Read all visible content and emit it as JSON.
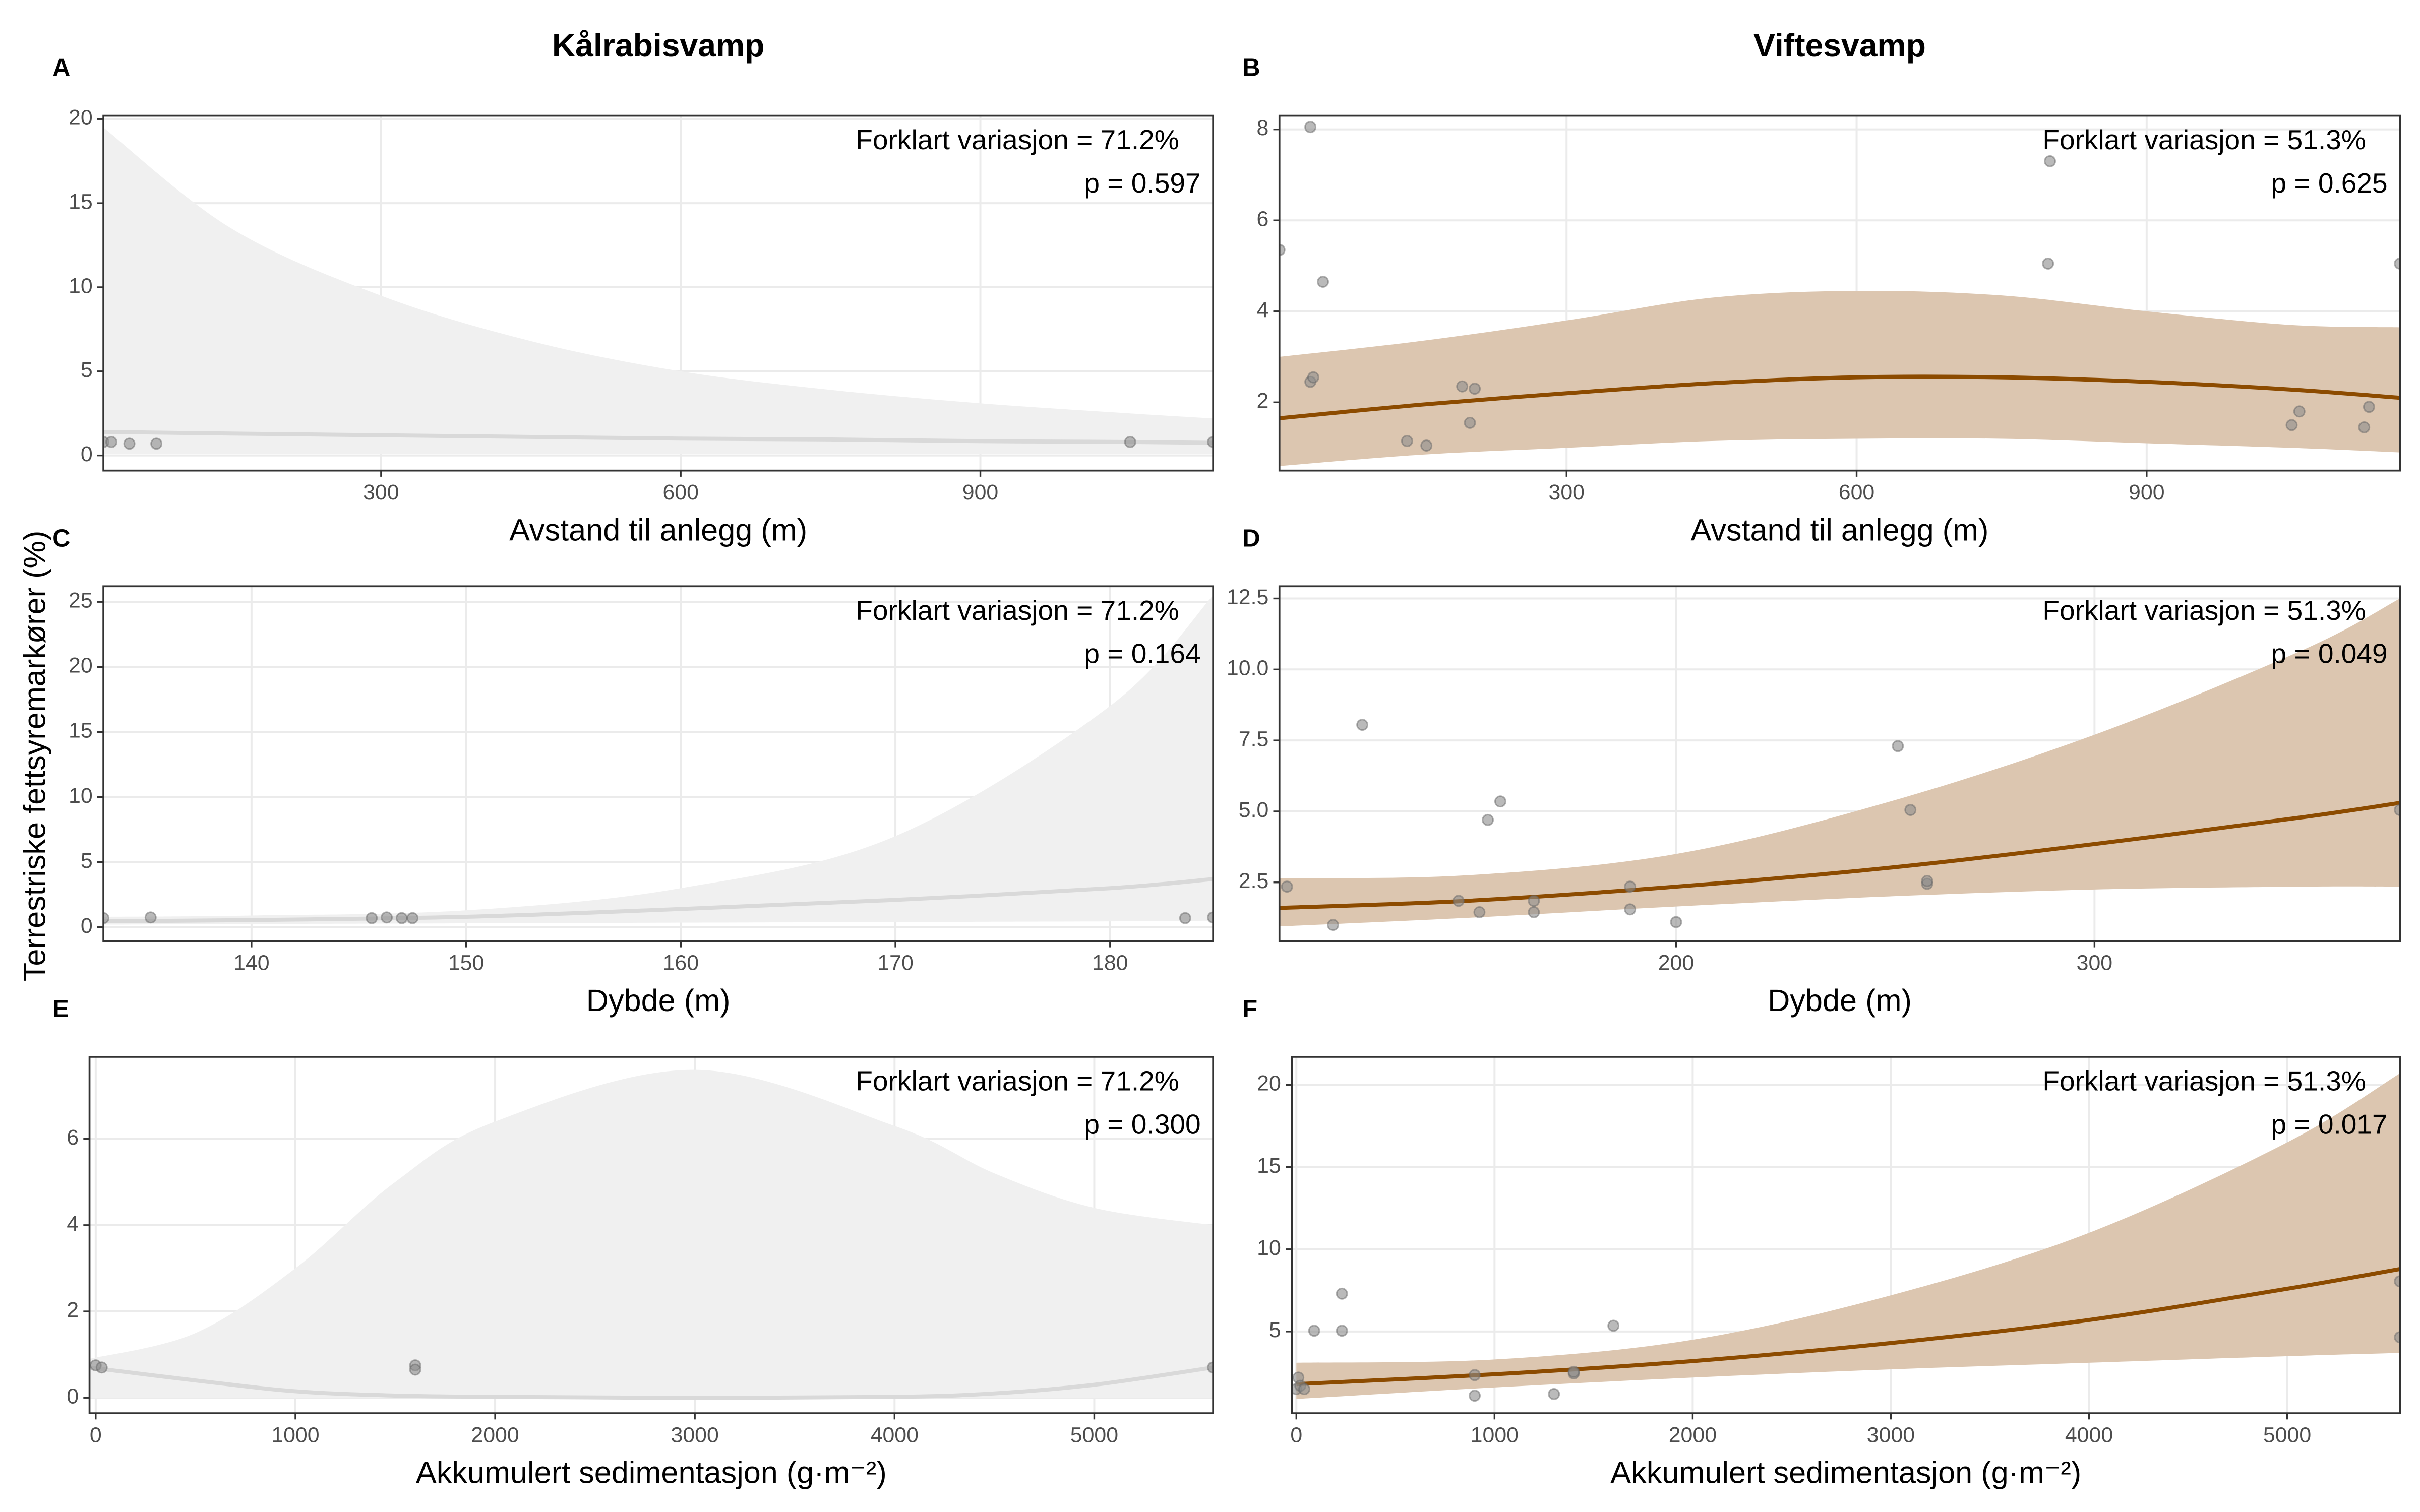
{
  "y_label": "Terrestriske fettsyremarkører (%)",
  "chart_data": [
    {
      "type": "scatter",
      "panel": "A",
      "title": "Kålrabisvamp",
      "xlabel": "Avstand til anlegg (m)",
      "annotations": [
        "Forklart variasjon = 71.2%",
        "p = 0.597"
      ],
      "points": {
        "x": [
          22,
          30,
          48,
          75,
          1050,
          1133
        ],
        "y": [
          0.8,
          0.8,
          0.7,
          0.7,
          0.8,
          0.8
        ]
      },
      "fit": {
        "x": [
          22,
          150,
          300,
          450,
          600,
          750,
          900,
          1050,
          1133
        ],
        "y": [
          1.4,
          1.3,
          1.2,
          1.1,
          1.0,
          0.95,
          0.85,
          0.8,
          0.75
        ],
        "lower": [
          0.1,
          0.1,
          0.1,
          0.1,
          0.1,
          0.1,
          0.1,
          0.1,
          0.1
        ],
        "upper": [
          19.5,
          13.5,
          9.5,
          6.8,
          5.0,
          3.9,
          3.1,
          2.5,
          2.2
        ]
      },
      "xlim": [
        22,
        1133
      ],
      "ylim": [
        -0.9,
        20.2
      ],
      "xticks": [
        300,
        600,
        900
      ],
      "yticks": [
        0,
        5,
        10,
        15,
        20
      ],
      "grid": true,
      "point_color": "#8c8c8c",
      "line_color": "#d9d9d9",
      "band_color": "#f0f0f0"
    },
    {
      "type": "scatter",
      "panel": "B",
      "title": "Viftesvamp",
      "xlabel": "Avstand til anlegg (m)",
      "annotations": [
        "Forklart variasjon = 51.3%",
        "p = 0.625"
      ],
      "points": {
        "x": [
          3,
          35,
          35,
          38,
          48,
          135,
          155,
          192,
          200,
          205,
          800,
          798,
          1050,
          1058,
          1125,
          1130,
          1162
        ],
        "y": [
          5.35,
          8.05,
          2.45,
          2.55,
          4.65,
          1.15,
          1.05,
          2.35,
          1.55,
          2.3,
          7.3,
          5.05,
          1.5,
          1.8,
          1.45,
          1.9,
          5.05
        ]
      },
      "fit": {
        "x": [
          3,
          150,
          300,
          450,
          600,
          750,
          900,
          1050,
          1162
        ],
        "y": [
          1.65,
          1.95,
          2.2,
          2.42,
          2.55,
          2.55,
          2.45,
          2.28,
          2.1
        ],
        "lower": [
          0.6,
          0.85,
          1.0,
          1.15,
          1.2,
          1.2,
          1.1,
          1.0,
          0.9
        ],
        "upper": [
          3.0,
          3.35,
          3.8,
          4.3,
          4.45,
          4.35,
          4.0,
          3.7,
          3.65
        ]
      },
      "xlim": [
        3,
        1162
      ],
      "ylim": [
        0.5,
        8.3
      ],
      "xticks": [
        300,
        600,
        900
      ],
      "yticks": [
        2,
        4,
        6,
        8
      ],
      "grid": true,
      "point_color": "#8c8c8c",
      "line_color": "#8c4b00",
      "band_color": "#dcc6b0"
    },
    {
      "type": "scatter",
      "panel": "C",
      "xlabel": "Dybde (m)",
      "annotations": [
        "Forklart variasjon = 71.2%",
        "p = 0.164"
      ],
      "points": {
        "x": [
          133.1,
          135.3,
          145.6,
          146.3,
          147,
          147.5,
          183.5,
          184.8
        ],
        "y": [
          0.7,
          0.75,
          0.7,
          0.75,
          0.7,
          0.7,
          0.7,
          0.75
        ]
      },
      "fit": {
        "x": [
          133.1,
          140,
          150,
          160,
          170,
          180,
          184.8
        ],
        "y": [
          0.45,
          0.55,
          0.8,
          1.4,
          2.1,
          3.0,
          3.7
        ],
        "lower": [
          0.2,
          0.25,
          0.3,
          0.35,
          0.4,
          0.45,
          0.5
        ],
        "upper": [
          0.8,
          0.9,
          1.3,
          3.0,
          7.0,
          17.0,
          25.5
        ]
      },
      "xlim": [
        133.1,
        184.8
      ],
      "ylim": [
        -1.07,
        26.2
      ],
      "xticks": [
        140,
        150,
        160,
        170,
        180
      ],
      "yticks": [
        0,
        5,
        10,
        15,
        20,
        25
      ],
      "grid": true,
      "point_color": "#8c8c8c",
      "line_color": "#d9d9d9",
      "band_color": "#f0f0f0"
    },
    {
      "type": "scatter",
      "panel": "D",
      "xlabel": "Dybde (m)",
      "annotations": [
        "Forklart variasjon = 51.3%",
        "p = 0.049"
      ],
      "points": {
        "x": [
          107,
          118,
          125,
          148,
          153,
          155,
          158,
          166,
          166,
          189,
          189,
          200,
          253,
          256,
          260,
          260,
          373
        ],
        "y": [
          2.35,
          1.0,
          8.05,
          1.85,
          1.45,
          4.7,
          5.35,
          1.45,
          1.85,
          2.35,
          1.55,
          1.1,
          7.3,
          5.05,
          2.45,
          2.55,
          5.05
        ]
      },
      "fit": {
        "x": [
          105.2,
          150,
          200,
          250,
          300,
          350,
          373
        ],
        "y": [
          1.6,
          1.85,
          2.35,
          3.0,
          3.85,
          4.8,
          5.3
        ],
        "lower": [
          0.95,
          1.25,
          1.65,
          2.0,
          2.25,
          2.35,
          2.35
        ],
        "upper": [
          2.65,
          2.75,
          3.5,
          5.3,
          7.7,
          10.7,
          12.5
        ]
      },
      "xlim": [
        105.2,
        373
      ],
      "ylim": [
        0.43,
        12.93
      ],
      "xticks": [
        200,
        300
      ],
      "yticks": [
        2.5,
        {
          "value": 5,
          "label": "5.0"
        },
        7.5,
        {
          "value": 10,
          "label": "10.0"
        },
        12.5
      ],
      "grid": true,
      "point_color": "#8c8c8c",
      "line_color": "#8c4b00",
      "band_color": "#dcc6b0"
    },
    {
      "type": "scatter",
      "panel": "E",
      "xlabel": "Akkumulert sedimentasjon (g·m⁻²)",
      "annotations": [
        "Forklart variasjon = 71.2%",
        "p = 0.300"
      ],
      "points": {
        "x": [
          0,
          30,
          1600,
          1600,
          5595
        ],
        "y": [
          0.75,
          0.7,
          0.75,
          0.65,
          0.7
        ]
      },
      "fit": {
        "x": [
          -31,
          500,
          1000,
          1500,
          2000,
          3000,
          4000,
          4500,
          5000,
          5595
        ],
        "y": [
          0.7,
          0.4,
          0.15,
          0.05,
          0.02,
          0.0,
          0.02,
          0.1,
          0.3,
          0.7
        ],
        "lower": [
          0,
          0,
          0,
          0,
          0,
          0,
          0,
          0,
          0,
          0
        ],
        "upper": [
          0.9,
          1.5,
          3.0,
          5.0,
          6.4,
          7.6,
          6.3,
          5.2,
          4.4,
          4.0
        ]
      },
      "xlim": [
        -31,
        5595
      ],
      "ylim": [
        -0.36,
        7.9
      ],
      "xticks": [
        0,
        1000,
        2000,
        3000,
        4000,
        5000
      ],
      "yticks": [
        0,
        2,
        4,
        6
      ],
      "grid": true,
      "point_color": "#8c8c8c",
      "line_color": "#d9d9d9",
      "band_color": "#f0f0f0"
    },
    {
      "type": "scatter",
      "panel": "F",
      "xlabel": "Akkumulert sedimentasjon (g·m⁻²)",
      "annotations": [
        "Forklart variasjon = 51.3%",
        "p = 0.017"
      ],
      "points": {
        "x": [
          0,
          10,
          20,
          40,
          90,
          230,
          230,
          900,
          900,
          1300,
          1400,
          1400,
          1600,
          5569,
          5569
        ],
        "y": [
          1.5,
          2.2,
          1.7,
          1.5,
          5.05,
          7.3,
          5.05,
          2.35,
          1.1,
          1.2,
          2.45,
          2.55,
          5.35,
          8.05,
          4.65
        ]
      },
      "fit": {
        "x": [
          0,
          1000,
          2000,
          3000,
          4000,
          5000,
          5569
        ],
        "y": [
          1.8,
          2.4,
          3.2,
          4.3,
          5.7,
          7.6,
          8.8
        ],
        "lower": [
          0.9,
          1.6,
          2.2,
          2.7,
          3.1,
          3.5,
          3.7
        ],
        "upper": [
          3.1,
          3.3,
          4.5,
          7.2,
          11.0,
          16.5,
          20.7
        ]
      },
      "xlim": [
        -23,
        5569
      ],
      "ylim": [
        0.03,
        21.7
      ],
      "xticks": [
        0,
        1000,
        2000,
        3000,
        4000,
        5000
      ],
      "yticks": [
        5,
        10,
        15,
        20
      ],
      "grid": true,
      "point_color": "#8c8c8c",
      "line_color": "#8c4b00",
      "band_color": "#dcc6b0"
    }
  ]
}
